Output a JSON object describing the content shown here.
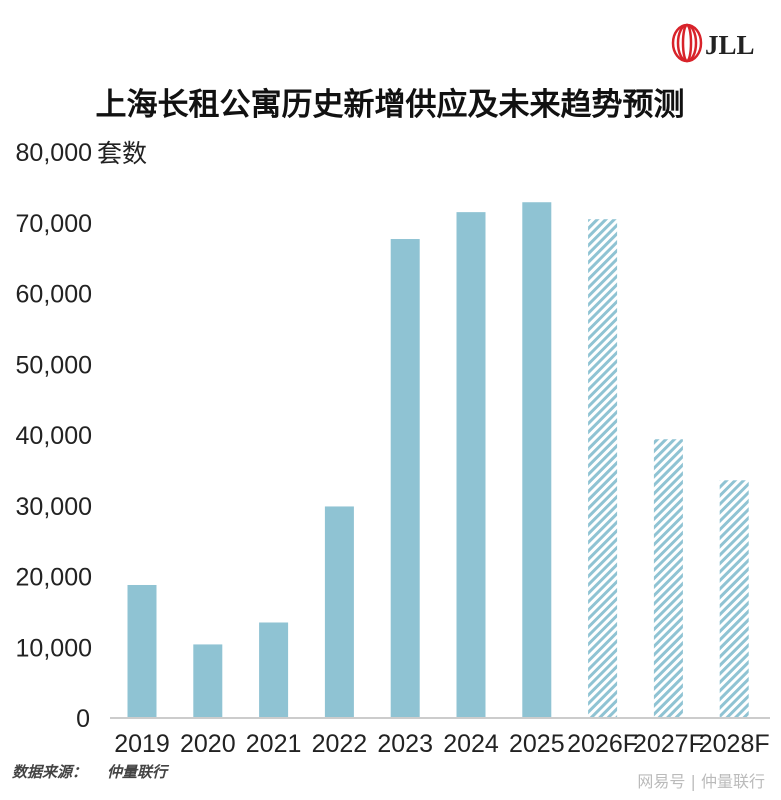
{
  "brand": {
    "logo_text": "JLL",
    "logo_color": "#d8232a"
  },
  "chart_data": {
    "type": "bar",
    "title": "上海长租公寓历史新增供应及未来趋势预测",
    "ylabel": "套数",
    "categories": [
      "2019",
      "2020",
      "2021",
      "2022",
      "2023",
      "2024",
      "2025",
      "2026F",
      "2027F",
      "2028F"
    ],
    "values": [
      18800,
      10400,
      13500,
      29900,
      67700,
      71500,
      72900,
      70500,
      39400,
      33600
    ],
    "forecast": [
      false,
      false,
      false,
      false,
      false,
      false,
      false,
      true,
      true,
      true
    ],
    "ylim": [
      0,
      80000
    ],
    "yticks": [
      "0",
      "10,000",
      "20,000",
      "30,000",
      "40,000",
      "50,000",
      "60,000",
      "70,000",
      "80,000"
    ],
    "grid": false,
    "colors": {
      "actual": "#8fc3d3",
      "forecast_hatch": "#8fc3d3"
    }
  },
  "footer": {
    "source_label": "数据来源：",
    "source_value": "仲量联行",
    "watermark": "网易号 | 仲量联行"
  }
}
